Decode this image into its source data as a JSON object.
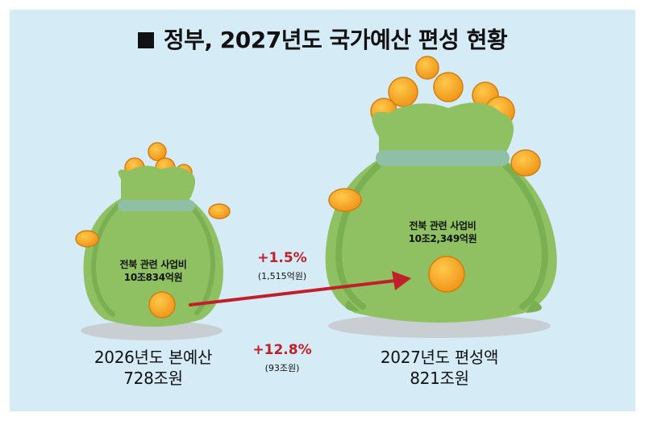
{
  "title": "정부, 2027년도 국가예산 편성 현황",
  "left_bag": {
    "label_line1": "전북 관련 사업비",
    "label_line2": "10조834억원",
    "caption_line1": "2026년도 본예산",
    "caption_line2": "728조원"
  },
  "right_bag": {
    "label_line1": "전북 관련 사업비",
    "label_line2": "10조2,349억원",
    "caption_line1": "2027년도 편성액",
    "caption_line2": "821조원"
  },
  "change_local": {
    "percent": "+1.5%",
    "amount": "(1,515억원)"
  },
  "change_national": {
    "percent": "+12.8%",
    "amount": "(93조원)"
  },
  "colors": {
    "background": "#d5ebf6",
    "bag_green": "#8fc163",
    "bag_dark": "#6fa84a",
    "coin": "#f5a623",
    "arrow": "#c0202a"
  }
}
